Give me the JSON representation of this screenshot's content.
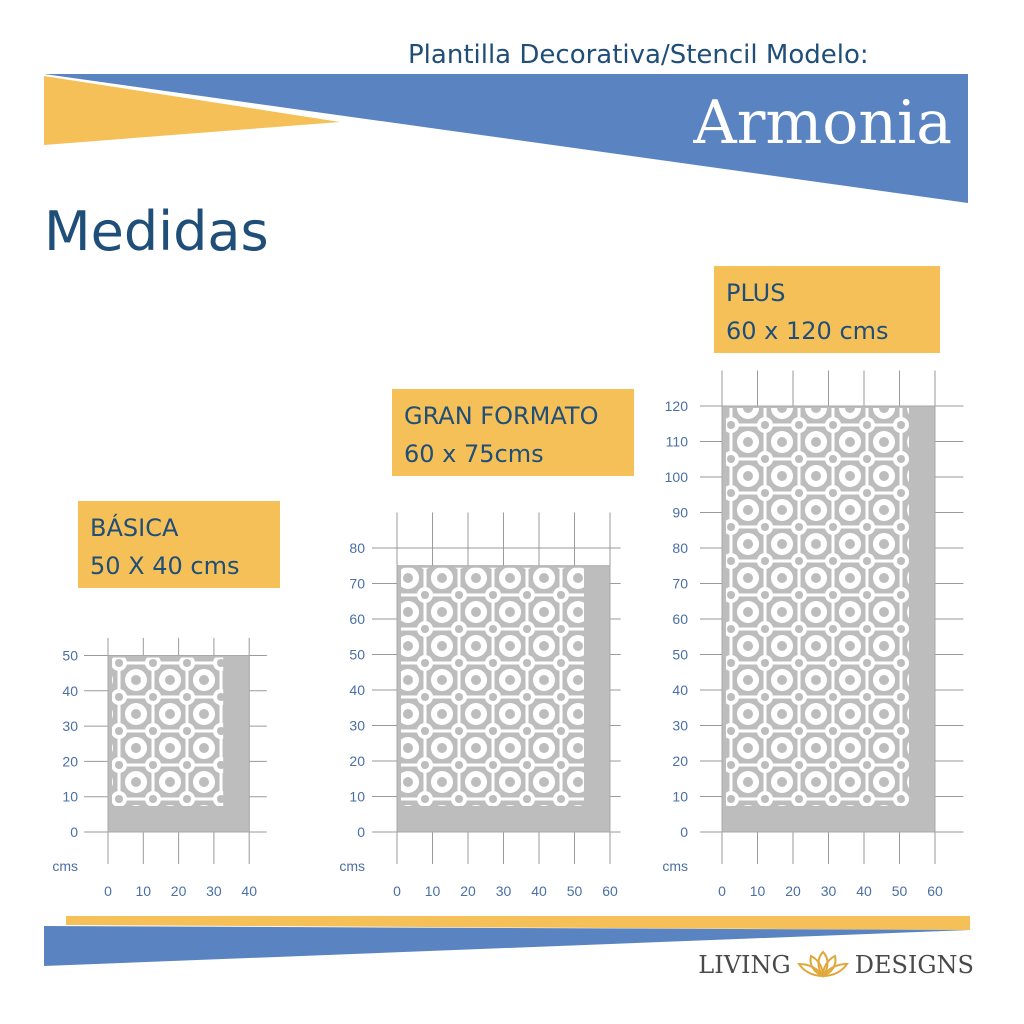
{
  "header": {
    "subtitle": "Plantilla Decorativa/Stencil Modelo:",
    "model_name": "Armonia"
  },
  "section_title": "Medidas",
  "sizes": [
    {
      "name": "BÁSICA",
      "dims": "50 X 40 cms",
      "width_cm": 40,
      "height_cm": 50,
      "x_ticks": [
        "0",
        "10",
        "20",
        "30",
        "40"
      ],
      "y_ticks": [
        "0",
        "10",
        "20",
        "30",
        "40",
        "50"
      ],
      "unit": "cms"
    },
    {
      "name": "GRAN FORMATO",
      "dims": "60 x 75cms",
      "width_cm": 60,
      "height_cm": 75,
      "x_ticks": [
        "0",
        "10",
        "20",
        "30",
        "40",
        "50",
        "60"
      ],
      "y_ticks": [
        "0",
        "10",
        "20",
        "30",
        "40",
        "50",
        "60",
        "70",
        "80"
      ],
      "unit": "cms"
    },
    {
      "name": "PLUS",
      "dims": "60 x 120 cms",
      "width_cm": 60,
      "height_cm": 120,
      "x_ticks": [
        "0",
        "10",
        "20",
        "30",
        "40",
        "50",
        "60"
      ],
      "y_ticks": [
        "0",
        "10",
        "20",
        "30",
        "40",
        "50",
        "60",
        "70",
        "80",
        "90",
        "100",
        "110",
        "120"
      ],
      "unit": "cms"
    }
  ],
  "brand": {
    "left": "LIVING",
    "right": "DESIGNS"
  },
  "colors": {
    "blue": "#5a84c1",
    "yellow": "#f6c058",
    "text_blue": "#1f4e79",
    "axis_blue": "#4a6fa5",
    "stencil_gray": "#bdbdbd"
  }
}
